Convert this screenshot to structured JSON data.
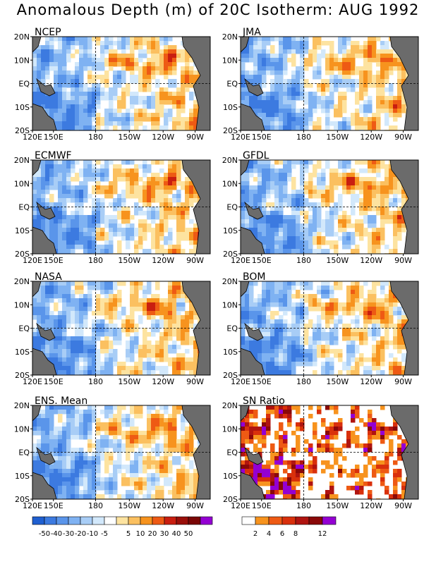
{
  "title": "Anomalous Depth (m) of 20C Isotherm: AUG 1992",
  "lon_ticks": [
    "120E",
    "150E",
    "180",
    "150W",
    "120W",
    "90W"
  ],
  "lat_ticks": [
    "20N",
    "10N",
    "EQ",
    "10S",
    "20S"
  ],
  "panels": [
    {
      "label": "NCEP"
    },
    {
      "label": "JMA"
    },
    {
      "label": "ECMWF"
    },
    {
      "label": "GFDL"
    },
    {
      "label": "NASA"
    },
    {
      "label": "BOM"
    },
    {
      "label": "ENS. Mean"
    },
    {
      "label": "SN Ratio"
    }
  ],
  "anomaly_legend": {
    "colors": [
      "#1f5fd0",
      "#3c7ae0",
      "#5a95ea",
      "#7fb2f2",
      "#a8cdf6",
      "#d2e8fb",
      "#ffffff",
      "#fde3a0",
      "#fbc060",
      "#f7931e",
      "#ee5a14",
      "#c91e10",
      "#9a0f0a",
      "#7a0606",
      "#9400d3"
    ],
    "labels": [
      "-50",
      "-40",
      "-30",
      "-20",
      "-10",
      "-5",
      "5",
      "10",
      "20",
      "30",
      "40",
      "50"
    ]
  },
  "sn_legend": {
    "colors": [
      "#ffffff",
      "#f7931e",
      "#ee5a14",
      "#d9300c",
      "#b01410",
      "#8a0808",
      "#9400d3"
    ],
    "labels": [
      "2",
      "4",
      "6",
      "8",
      "12"
    ]
  }
}
